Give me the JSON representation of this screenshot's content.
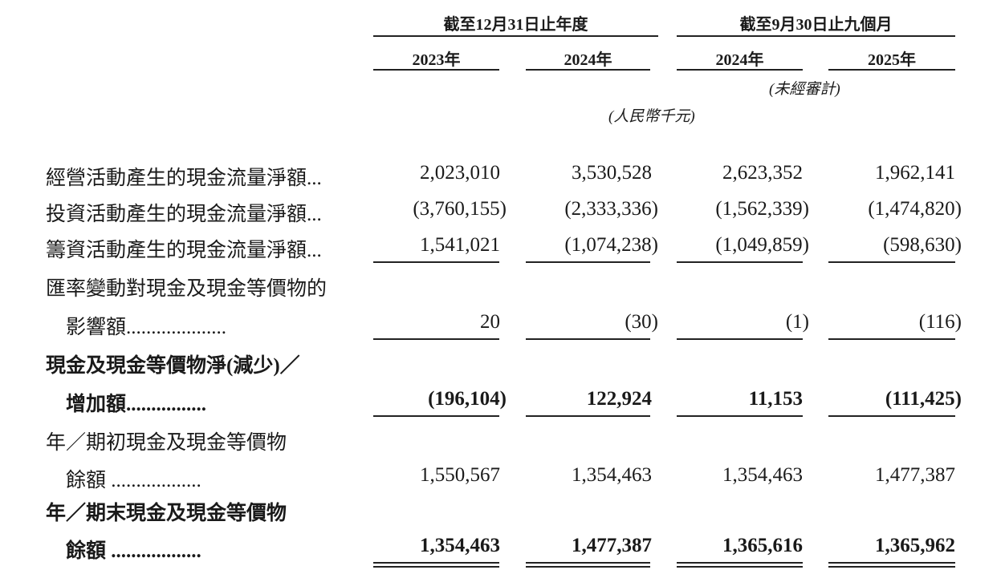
{
  "header": {
    "group1": "截至12月31日止年度",
    "group2": "截至9月30日止九個月",
    "years": [
      "2023年",
      "2024年",
      "2024年",
      "2025年"
    ],
    "unaudited": "(未經審計)",
    "unit": "(人民幣千元)"
  },
  "rows": [
    {
      "label": "經營活動產生的現金流量淨額...",
      "values": [
        "2,023,010",
        "3,530,528",
        "2,623,352",
        "1,962,141"
      ]
    },
    {
      "label": "投資活動產生的現金流量淨額...",
      "values": [
        "(3,760,155)",
        "(2,333,336)",
        "(1,562,339)",
        "(1,474,820)"
      ]
    },
    {
      "label": "籌資活動產生的現金流量淨額...",
      "values": [
        "1,541,021",
        "(1,074,238)",
        "(1,049,859)",
        "(598,630)"
      ]
    },
    {
      "label": "匯率變動對現金及現金等價物的",
      "label2": "影響額....................",
      "values": [
        "20",
        "(30)",
        "(1)",
        "(116)"
      ]
    },
    {
      "label": "現金及現金等價物淨(減少)／",
      "label2": "增加額................",
      "values": [
        "(196,104)",
        "122,924",
        "11,153",
        "(111,425)"
      ]
    },
    {
      "label": "年／期初現金及現金等價物",
      "label2": "餘額 ..................",
      "values": [
        "1,550,567",
        "1,354,463",
        "1,354,463",
        "1,477,387"
      ]
    },
    {
      "label": "年／期末現金及現金等價物",
      "label2": "餘額 ..................",
      "values": [
        "1,354,463",
        "1,477,387",
        "1,365,616",
        "1,365,962"
      ]
    }
  ]
}
